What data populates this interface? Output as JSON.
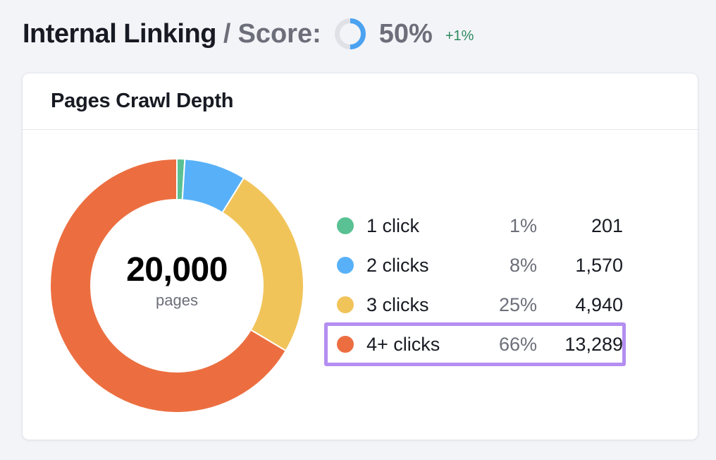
{
  "header": {
    "title": "Internal Linking",
    "separator": "/",
    "score_label": "Score:",
    "score_value": "50%",
    "score_fraction": 0.5,
    "score_delta": "+1%"
  },
  "card": {
    "title": "Pages Crawl Depth"
  },
  "chart_data": {
    "type": "pie",
    "variant": "donut",
    "center_value": "20,000",
    "center_unit": "pages",
    "categories": [
      "1 click",
      "2 clicks",
      "3 clicks",
      "4+ clicks"
    ],
    "percentages": [
      "1%",
      "8%",
      "25%",
      "66%"
    ],
    "counts": [
      "201",
      "1,570",
      "4,940",
      "13,289"
    ],
    "values": [
      201,
      1570,
      4940,
      13289
    ],
    "colors": [
      "#59c193",
      "#58b1f8",
      "#f1c45a",
      "#ec6e40"
    ],
    "highlighted_category": "4+ clicks",
    "highlight_color": "#b48ef0"
  },
  "colors": {
    "score_ring_fill": "#4aa2f0",
    "score_ring_track": "#dfe1e7",
    "delta_green": "#2c8a5c"
  }
}
